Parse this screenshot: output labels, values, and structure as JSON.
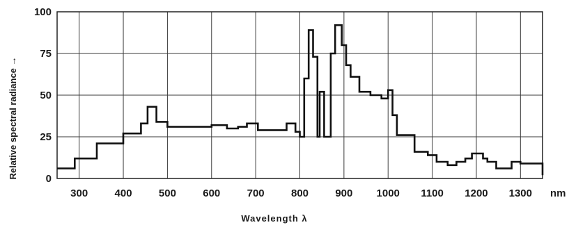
{
  "chart_data": {
    "type": "line",
    "step": true,
    "xlabel": "Wavelength λ",
    "ylabel": "Relative spectral radiance →",
    "x_unit": "nm",
    "xlim": [
      250,
      1350
    ],
    "ylim": [
      0,
      100
    ],
    "x_ticks": [
      300,
      400,
      500,
      600,
      700,
      800,
      900,
      1000,
      1100,
      1200,
      1300
    ],
    "x_tick_labels": [
      "300",
      "400",
      "500",
      "600",
      "700",
      "800",
      "900",
      "1000",
      "1100",
      "1200",
      "1300"
    ],
    "y_ticks": [
      0,
      25,
      50,
      75,
      100
    ],
    "y_tick_labels": [
      "0",
      "25",
      "50",
      "75",
      "100"
    ],
    "grid": true,
    "legend": "none",
    "series": [
      {
        "x": [
          250,
          290,
          340,
          400,
          440,
          455,
          475,
          500,
          600,
          635,
          660,
          680,
          705,
          770,
          790,
          800,
          810,
          820,
          830,
          840,
          845,
          855,
          860,
          870,
          880,
          895,
          905,
          915,
          935,
          960,
          985,
          1000,
          1010,
          1020,
          1060,
          1090,
          1110,
          1135,
          1155,
          1175,
          1190,
          1215,
          1225,
          1245,
          1280,
          1300,
          1350
        ],
        "y": [
          6,
          12,
          21,
          27,
          33,
          43,
          34,
          31,
          32,
          30,
          31,
          33,
          29,
          33,
          28,
          25,
          60,
          89,
          73,
          25,
          52,
          25,
          25,
          75,
          92,
          80,
          68,
          61,
          52,
          50,
          48,
          53,
          38,
          26,
          16,
          14,
          10,
          8,
          10,
          12,
          15,
          12,
          10,
          6,
          10,
          9,
          2
        ]
      }
    ]
  }
}
